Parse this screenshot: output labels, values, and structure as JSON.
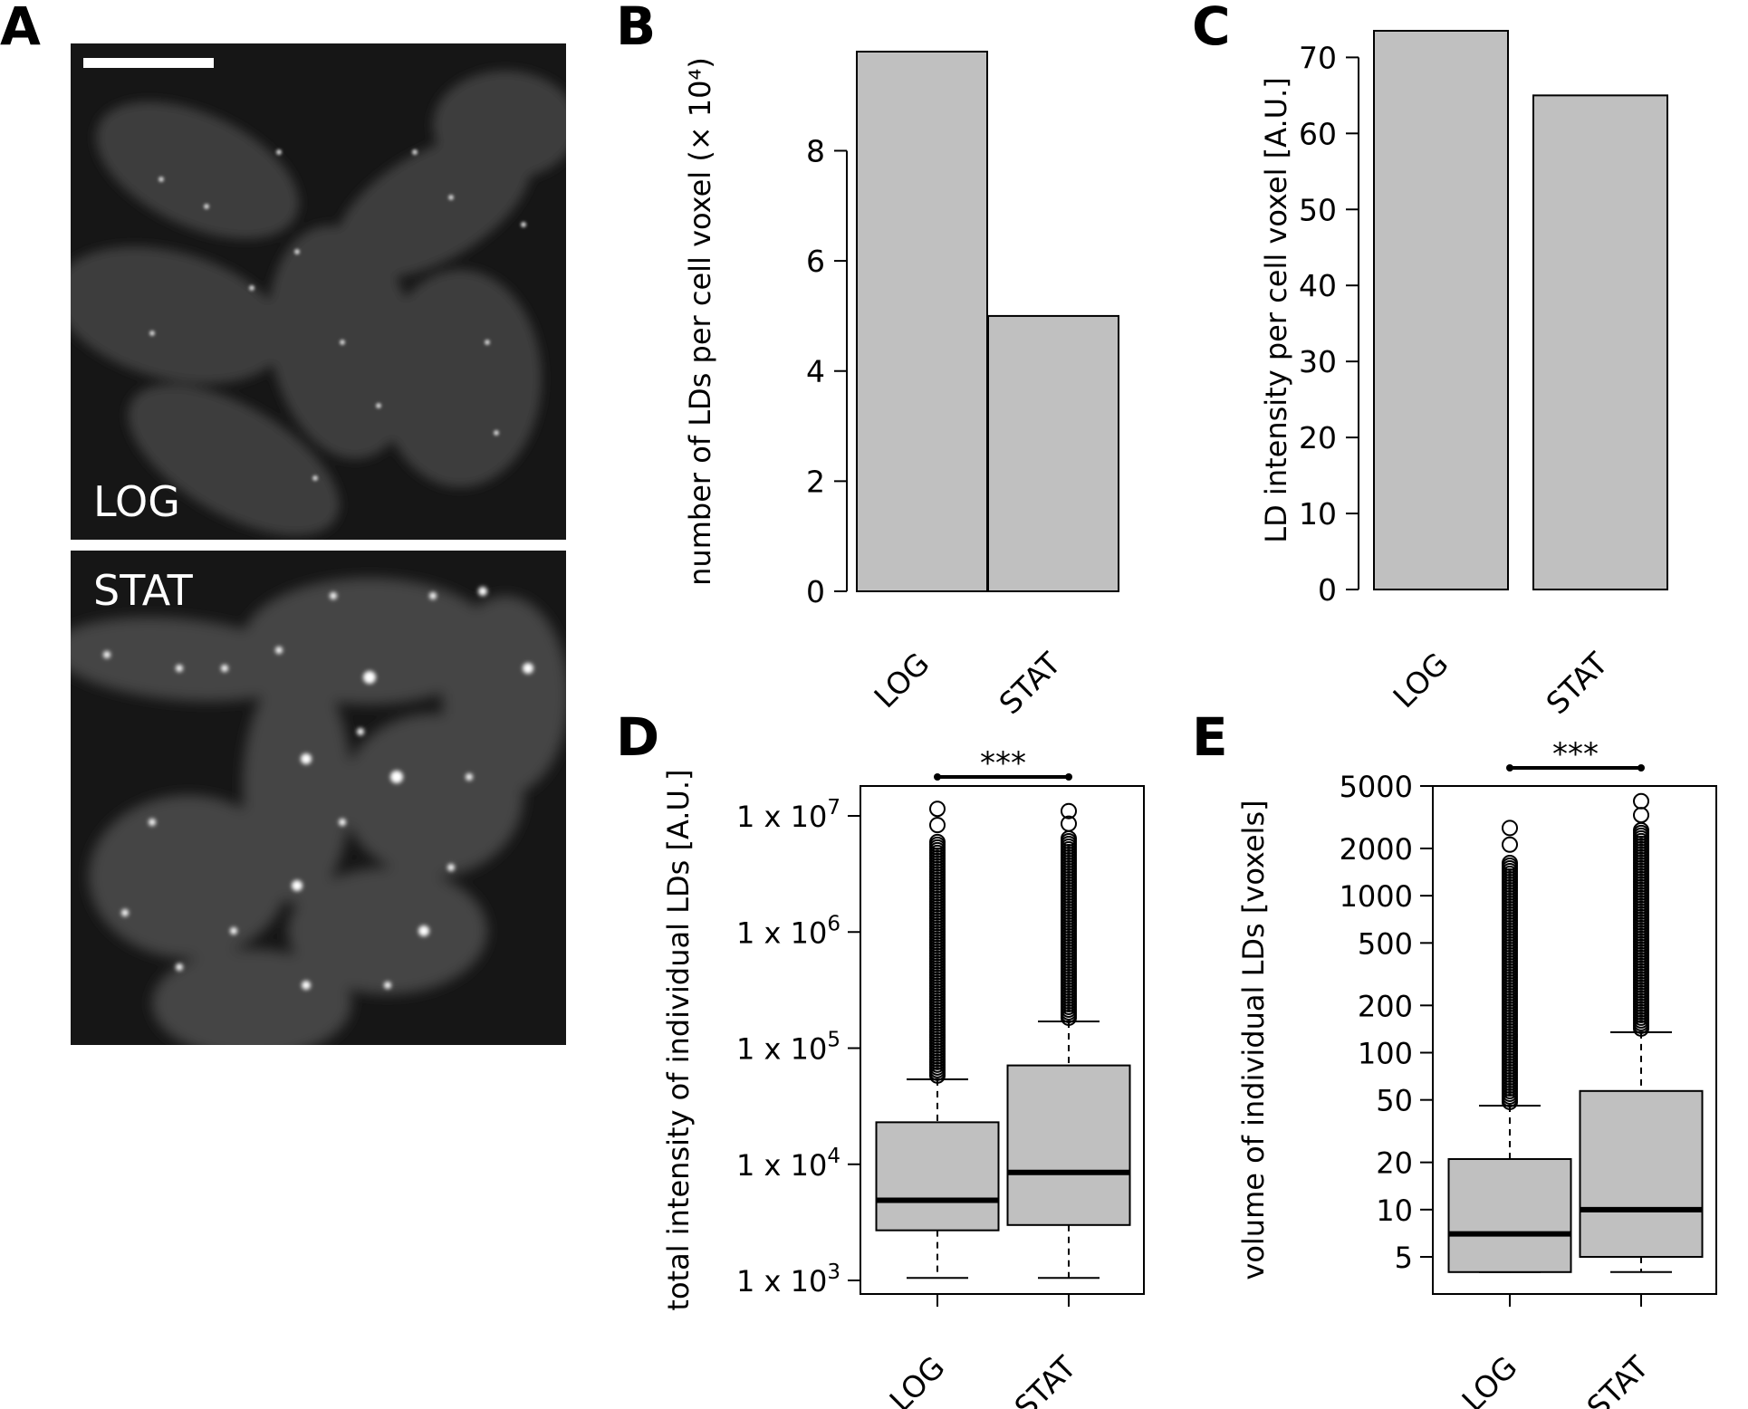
{
  "panels": {
    "a": "A",
    "b": "B",
    "c": "C",
    "d": "D",
    "e": "E"
  },
  "microscopy": {
    "top_label": "LOG",
    "bottom_label": "STAT"
  },
  "chart_data": [
    {
      "id": "B",
      "type": "bar",
      "categories": [
        "LOG",
        "STAT"
      ],
      "values": [
        9.8,
        5.0
      ],
      "ylabel": "number of LDs per cell voxel (× 10⁴)",
      "yticks": [
        0,
        2,
        4,
        6,
        8
      ],
      "ylim": [
        0,
        9.8
      ],
      "bar_color": "#c0c0c0"
    },
    {
      "id": "C",
      "type": "bar",
      "categories": [
        "LOG",
        "STAT"
      ],
      "values": [
        73.5,
        65.0
      ],
      "ylabel": "LD intensity per cell voxel [A.U.]",
      "yticks": [
        0,
        10,
        20,
        30,
        40,
        50,
        60,
        70
      ],
      "ylim": [
        0,
        73.5
      ],
      "bar_color": "#c0c0c0"
    },
    {
      "id": "D",
      "type": "box",
      "scale": "log",
      "categories": [
        "LOG",
        "STAT"
      ],
      "boxes": [
        {
          "min": 1050,
          "q1": 2700,
          "median": 4900,
          "q3": 23000,
          "max": 54000,
          "outlier_max": 11500000
        },
        {
          "min": 1050,
          "q1": 3000,
          "median": 8500,
          "q3": 71000,
          "max": 170000,
          "outlier_max": 11000000
        }
      ],
      "ylabel": "total intensity of individual LDs [A.U.]",
      "yticks": [
        1000,
        10000,
        100000,
        1000000,
        10000000
      ],
      "ytick_labels": [
        {
          "base": "1 x 10",
          "exp": "3"
        },
        {
          "base": "1 x 10",
          "exp": "4"
        },
        {
          "base": "1 x 10",
          "exp": "5"
        },
        {
          "base": "1 x 10",
          "exp": "6"
        },
        {
          "base": "1 x 10",
          "exp": "7"
        }
      ],
      "significance": "***",
      "bar_color": "#c0c0c0"
    },
    {
      "id": "E",
      "type": "box",
      "scale": "log",
      "categories": [
        "LOG",
        "STAT"
      ],
      "boxes": [
        {
          "min": 4,
          "q1": 4,
          "median": 7,
          "q3": 21,
          "max": 46,
          "outlier_max": 2700
        },
        {
          "min": 4,
          "q1": 5,
          "median": 10,
          "q3": 57,
          "max": 135,
          "outlier_max": 4000
        }
      ],
      "ylabel": "volume of individual LDs [voxels]",
      "yticks": [
        5,
        10,
        20,
        50,
        100,
        200,
        500,
        1000,
        2000,
        5000
      ],
      "ytick_labels": [
        {
          "base": "5"
        },
        {
          "base": "10"
        },
        {
          "base": "20"
        },
        {
          "base": "50"
        },
        {
          "base": "100"
        },
        {
          "base": "200"
        },
        {
          "base": "500"
        },
        {
          "base": "1000"
        },
        {
          "base": "2000"
        },
        {
          "base": "5000"
        }
      ],
      "significance": "***",
      "bar_color": "#c0c0c0"
    }
  ]
}
